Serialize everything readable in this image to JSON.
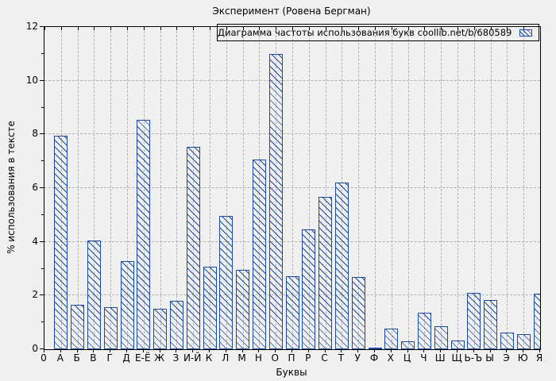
{
  "chart_data": {
    "type": "bar",
    "title": "Эксперимент (Ровена Бергман)",
    "legend_label": "Диаграмма частоты использования букв coollib.net/b/680589",
    "legend_position": "top-right-inside-box",
    "xlabel": "Буквы",
    "ylabel": "% использования в тексте",
    "categories": [
      "0",
      "А",
      "Б",
      "В",
      "Г",
      "Д",
      "Е-Ё",
      "Ж",
      "З",
      "И-Й",
      "К",
      "Л",
      "М",
      "Н",
      "О",
      "П",
      "Р",
      "С",
      "Т",
      "У",
      "Ф",
      "Х",
      "Ц",
      "Ч",
      "Ш",
      "Щ",
      "Ь-Ъ",
      "Ы",
      "Э",
      "Ю",
      "Я"
    ],
    "values": [
      0,
      7.95,
      1.67,
      4.06,
      1.57,
      3.27,
      8.53,
      1.5,
      1.8,
      7.55,
      3.08,
      4.97,
      2.95,
      7.05,
      11.0,
      2.72,
      4.47,
      5.69,
      6.2,
      2.7,
      0.07,
      0.78,
      0.3,
      1.37,
      0.86,
      0.33,
      2.1,
      1.84,
      0.63,
      0.56,
      2.08
    ],
    "ylim": [
      0,
      12
    ],
    "yticks": [
      0,
      2,
      4,
      6,
      8,
      10,
      12
    ],
    "grid": true,
    "bar_style": "diagonal-hatch"
  },
  "colors": {
    "bar": "#1c4a9e",
    "grid": "#b0b0b0",
    "axis": "#000000",
    "background": "#f0f0f0",
    "text": "#000000"
  }
}
